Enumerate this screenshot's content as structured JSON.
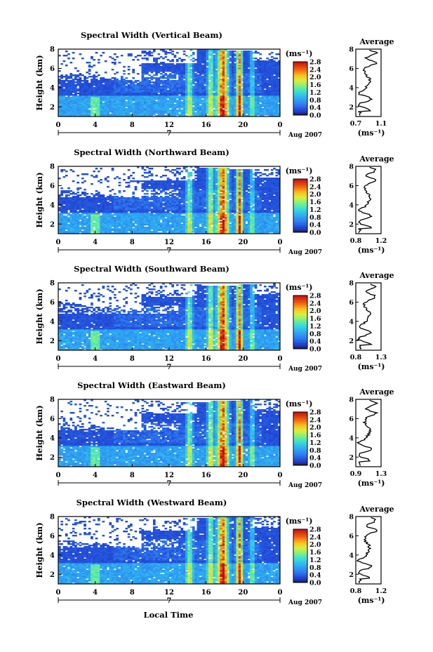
{
  "figure": {
    "xlabel": "Local Time",
    "colorbar_unit": "(ms⁻¹)",
    "avg_unit": "(ms⁻¹)"
  },
  "chart_data": [
    {
      "type": "heatmap",
      "title": "Spectral Width (Vertical Beam)",
      "ylabel": "Height (km)",
      "xlim": [
        0,
        24
      ],
      "ylim": [
        1,
        8
      ],
      "x_ticks": [
        "0",
        "4",
        "8",
        "12",
        "16",
        "20",
        "0"
      ],
      "y_ticks": [
        "2",
        "4",
        "6",
        "8"
      ],
      "date_label_day": "7",
      "date_label_month": "Aug 2007",
      "colorbar_ticks": [
        "0.0",
        "0.4",
        "0.8",
        "1.2",
        "1.6",
        "2.0",
        "2.4",
        "2.8"
      ],
      "avg_title": "Average",
      "avg_xlim": [
        0.7,
        1.1
      ],
      "avg_x_ticks": [
        "0.7",
        "1.1"
      ],
      "avg_y_ticks": [
        "2",
        "4",
        "6",
        "8"
      ]
    },
    {
      "type": "heatmap",
      "title": "Spectral Width (Northward Beam)",
      "ylabel": "Height (km)",
      "xlim": [
        0,
        24
      ],
      "ylim": [
        1,
        8
      ],
      "x_ticks": [
        "0",
        "4",
        "8",
        "12",
        "16",
        "20",
        "0"
      ],
      "y_ticks": [
        "2",
        "4",
        "6",
        "8"
      ],
      "date_label_day": "7",
      "date_label_month": "Aug 2007",
      "colorbar_ticks": [
        "0.0",
        "0.4",
        "0.8",
        "1.2",
        "1.6",
        "2.0",
        "2.4",
        "2.8"
      ],
      "avg_title": "Average",
      "avg_xlim": [
        0.8,
        1.2
      ],
      "avg_x_ticks": [
        "0.8",
        "1.2"
      ],
      "avg_y_ticks": [
        "2",
        "4",
        "6",
        "8"
      ]
    },
    {
      "type": "heatmap",
      "title": "Spectral Width (Southward Beam)",
      "ylabel": "Height (km)",
      "xlim": [
        0,
        24
      ],
      "ylim": [
        1,
        8
      ],
      "x_ticks": [
        "0",
        "4",
        "8",
        "12",
        "16",
        "20",
        "0"
      ],
      "y_ticks": [
        "2",
        "4",
        "6",
        "8"
      ],
      "date_label_day": "7",
      "date_label_month": "Aug 2007",
      "colorbar_ticks": [
        "0.0",
        "0.4",
        "0.8",
        "1.2",
        "1.6",
        "2.0",
        "2.4",
        "2.8"
      ],
      "avg_title": "Average",
      "avg_xlim": [
        0.8,
        1.3
      ],
      "avg_x_ticks": [
        "0.8",
        "1.3"
      ],
      "avg_y_ticks": [
        "2",
        "4",
        "6",
        "8"
      ]
    },
    {
      "type": "heatmap",
      "title": "Spectral Width (Eastward Beam)",
      "ylabel": "Height (km)",
      "xlim": [
        0,
        24
      ],
      "ylim": [
        1,
        8
      ],
      "x_ticks": [
        "0",
        "4",
        "8",
        "12",
        "16",
        "20",
        "0"
      ],
      "y_ticks": [
        "2",
        "4",
        "6",
        "8"
      ],
      "date_label_day": "7",
      "date_label_month": "Aug 2007",
      "colorbar_ticks": [
        "0.0",
        "0.4",
        "0.8",
        "1.2",
        "1.6",
        "2.0",
        "2.4",
        "2.8"
      ],
      "avg_title": "Average",
      "avg_xlim": [
        0.9,
        1.3
      ],
      "avg_x_ticks": [
        "0.9",
        "1.3"
      ],
      "avg_y_ticks": [
        "2",
        "4",
        "6",
        "8"
      ]
    },
    {
      "type": "heatmap",
      "title": "Spectral Width (Westward Beam)",
      "ylabel": "Height (km)",
      "xlim": [
        0,
        24
      ],
      "ylim": [
        1,
        8
      ],
      "x_ticks": [
        "0",
        "4",
        "8",
        "12",
        "16",
        "20",
        "0"
      ],
      "y_ticks": [
        "2",
        "4",
        "6",
        "8"
      ],
      "date_label_day": "7",
      "date_label_month": "Aug 2007",
      "colorbar_ticks": [
        "0.0",
        "0.4",
        "0.8",
        "1.2",
        "1.6",
        "2.0",
        "2.4",
        "2.8"
      ],
      "avg_title": "Average",
      "avg_xlim": [
        0.8,
        1.2
      ],
      "avg_x_ticks": [
        "0.8",
        "1.2"
      ],
      "avg_y_ticks": [
        "2",
        "4",
        "6",
        "8"
      ]
    }
  ]
}
